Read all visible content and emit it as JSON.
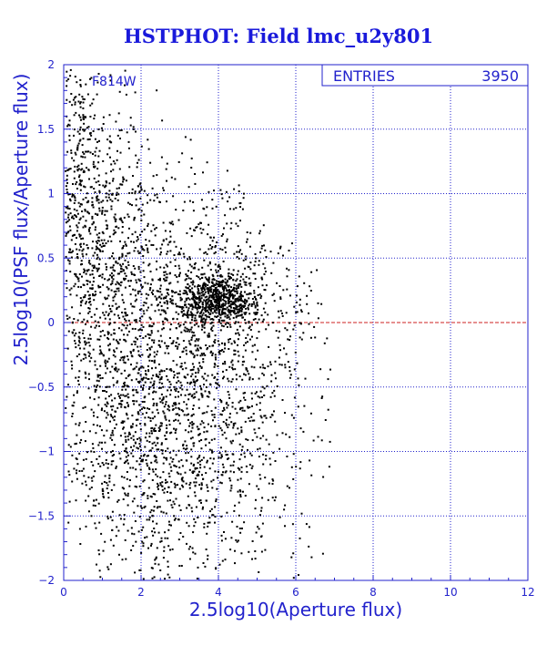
{
  "chart_data": {
    "type": "scatter",
    "title": "HSTPHOT: Field lmc_u2y801",
    "xlabel": "2.5log10(Aperture flux)",
    "ylabel": "2.5log10(PSF flux/Aperture flux)",
    "xlim": [
      0,
      12
    ],
    "ylim": [
      -2,
      2
    ],
    "x_ticks": [
      0,
      2,
      4,
      6,
      8,
      10,
      12
    ],
    "y_ticks": [
      -2,
      -1.5,
      -1,
      -0.5,
      0,
      0.5,
      1,
      1.5,
      2
    ],
    "grid": true,
    "annotation": "F814W",
    "stats_box": {
      "label": "ENTRIES",
      "value": "3950"
    },
    "reference_line": {
      "y": 0
    },
    "n_points": 3950,
    "clusters": [
      {
        "center": [
          4.0,
          0.18
        ],
        "spread": [
          0.55,
          0.1
        ],
        "fraction": 0.18
      },
      {
        "center": [
          3.5,
          -0.1
        ],
        "spread": [
          1.6,
          0.65
        ],
        "fraction": 0.32
      },
      {
        "center": [
          2.0,
          -0.8
        ],
        "spread": [
          1.1,
          0.65
        ],
        "fraction": 0.22
      },
      {
        "center": [
          1.0,
          0.6
        ],
        "spread": [
          0.7,
          0.55
        ],
        "fraction": 0.14
      },
      {
        "center": [
          0.45,
          1.2
        ],
        "spread": [
          0.35,
          0.5
        ],
        "fraction": 0.06
      },
      {
        "center": [
          4.0,
          -1.2
        ],
        "spread": [
          1.4,
          0.45
        ],
        "fraction": 0.08
      }
    ]
  },
  "colors": {
    "axes": "#2222cc",
    "grid": "#2222cc",
    "title": "#1a1adb",
    "reference_line": "#cc2222",
    "points": "#000000"
  }
}
